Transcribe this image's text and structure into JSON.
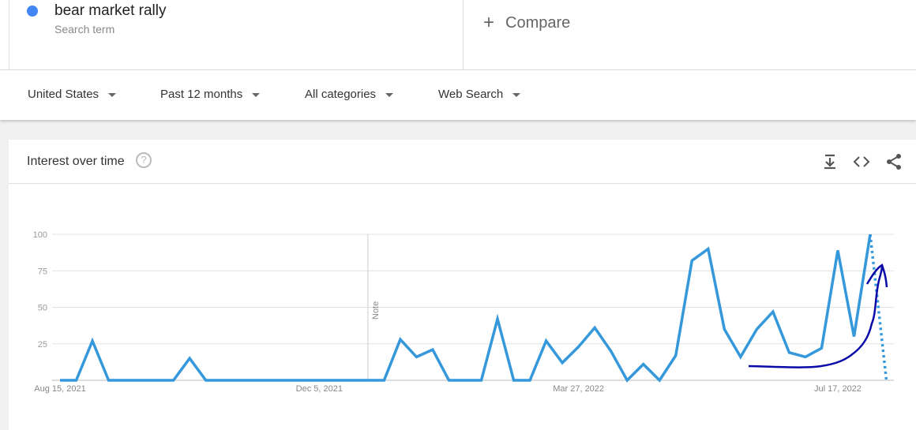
{
  "search_term": {
    "name": "bear market rally",
    "subtitle": "Search term",
    "color": "#4285f4"
  },
  "compare": {
    "icon": "plus-icon",
    "label": "Compare"
  },
  "filters": [
    {
      "label": "United States"
    },
    {
      "label": "Past 12 months"
    },
    {
      "label": "All categories"
    },
    {
      "label": "Web Search"
    }
  ],
  "card": {
    "title": "Interest over time",
    "help_icon": "help-circle-icon",
    "help_glyph": "?",
    "tools": [
      "download-icon",
      "embed-code-icon",
      "share-icon"
    ]
  },
  "chart_data": {
    "type": "line",
    "ylim": [
      0,
      100
    ],
    "yticks": [
      "100",
      "75",
      "50",
      "25"
    ],
    "xticks": [
      "Aug 15, 2021",
      "Dec 5, 2021",
      "Mar 27, 2022",
      "Jul 17, 2022"
    ],
    "note_label": "Note",
    "grid": true,
    "line_color": "#3498db",
    "annotation_color": "#0a0aa8",
    "series": [
      {
        "values": [
          0,
          0,
          27,
          0,
          0,
          0,
          0,
          0,
          15,
          0,
          0,
          0,
          0,
          0,
          0,
          0,
          0,
          0,
          0,
          0,
          0,
          28,
          16,
          21,
          0,
          0,
          0,
          42,
          0,
          0,
          27,
          12,
          23,
          36,
          20,
          0,
          11,
          0,
          17,
          82,
          90,
          35,
          16,
          35,
          47,
          19,
          16,
          22,
          89,
          30,
          100,
          0
        ]
      }
    ]
  }
}
